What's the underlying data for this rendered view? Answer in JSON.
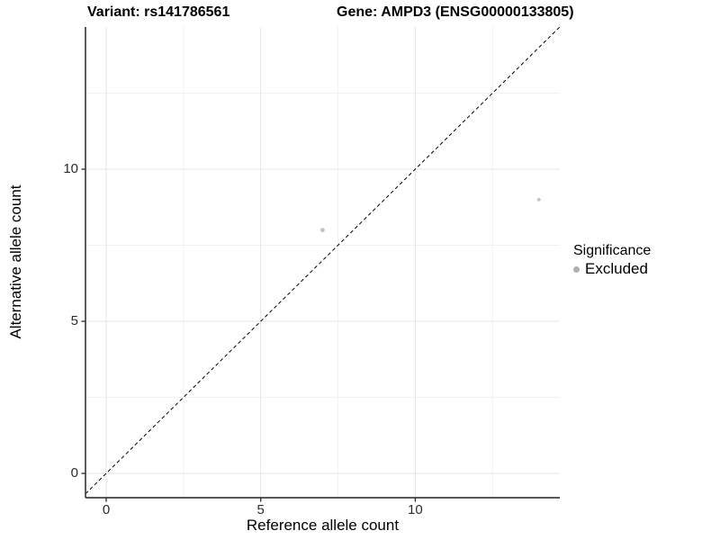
{
  "page": {
    "title_left": "Variant: rs141786561",
    "title_right": "Gene: AMPD3 (ENSG00000133805)"
  },
  "chart_data": {
    "type": "scatter",
    "title": "Variant: rs141786561 / Gene: AMPD3 (ENSG00000133805)",
    "xlabel": "Reference allele count",
    "ylabel": "Alternative allele count",
    "xlim": [
      -0.7,
      14.7
    ],
    "ylim": [
      -0.8,
      14.7
    ],
    "x_ticks": [
      0,
      5,
      10
    ],
    "x_tick_labels": [
      "0",
      "5",
      "10"
    ],
    "y_ticks": [
      0,
      5,
      10
    ],
    "y_tick_labels": [
      "0",
      "5",
      "10"
    ],
    "minor_ticks_x": [
      2.5,
      7.5,
      12.5
    ],
    "minor_ticks_y": [
      2.5,
      7.5,
      12.5
    ],
    "grid": "major+minor",
    "points": [
      {
        "x": 7,
        "y": 8,
        "series": "Excluded",
        "color": "#c2c2c2",
        "radius": 2.4
      },
      {
        "x": 14,
        "y": 9,
        "series": "Excluded",
        "color": "#c6c6c6",
        "radius": 2.0
      }
    ],
    "abline": {
      "slope": 1,
      "intercept": 0,
      "style": "dashed",
      "color": "#000000"
    },
    "colors": {
      "grid_major": "#e4e4e4",
      "grid_minor": "#f1f1f1",
      "axis": "#404040",
      "tick_mark": "#333333"
    },
    "legend": {
      "title": "Significance",
      "position": "right",
      "items": [
        {
          "label": "Excluded",
          "color": "#b0b0b0"
        }
      ]
    }
  }
}
